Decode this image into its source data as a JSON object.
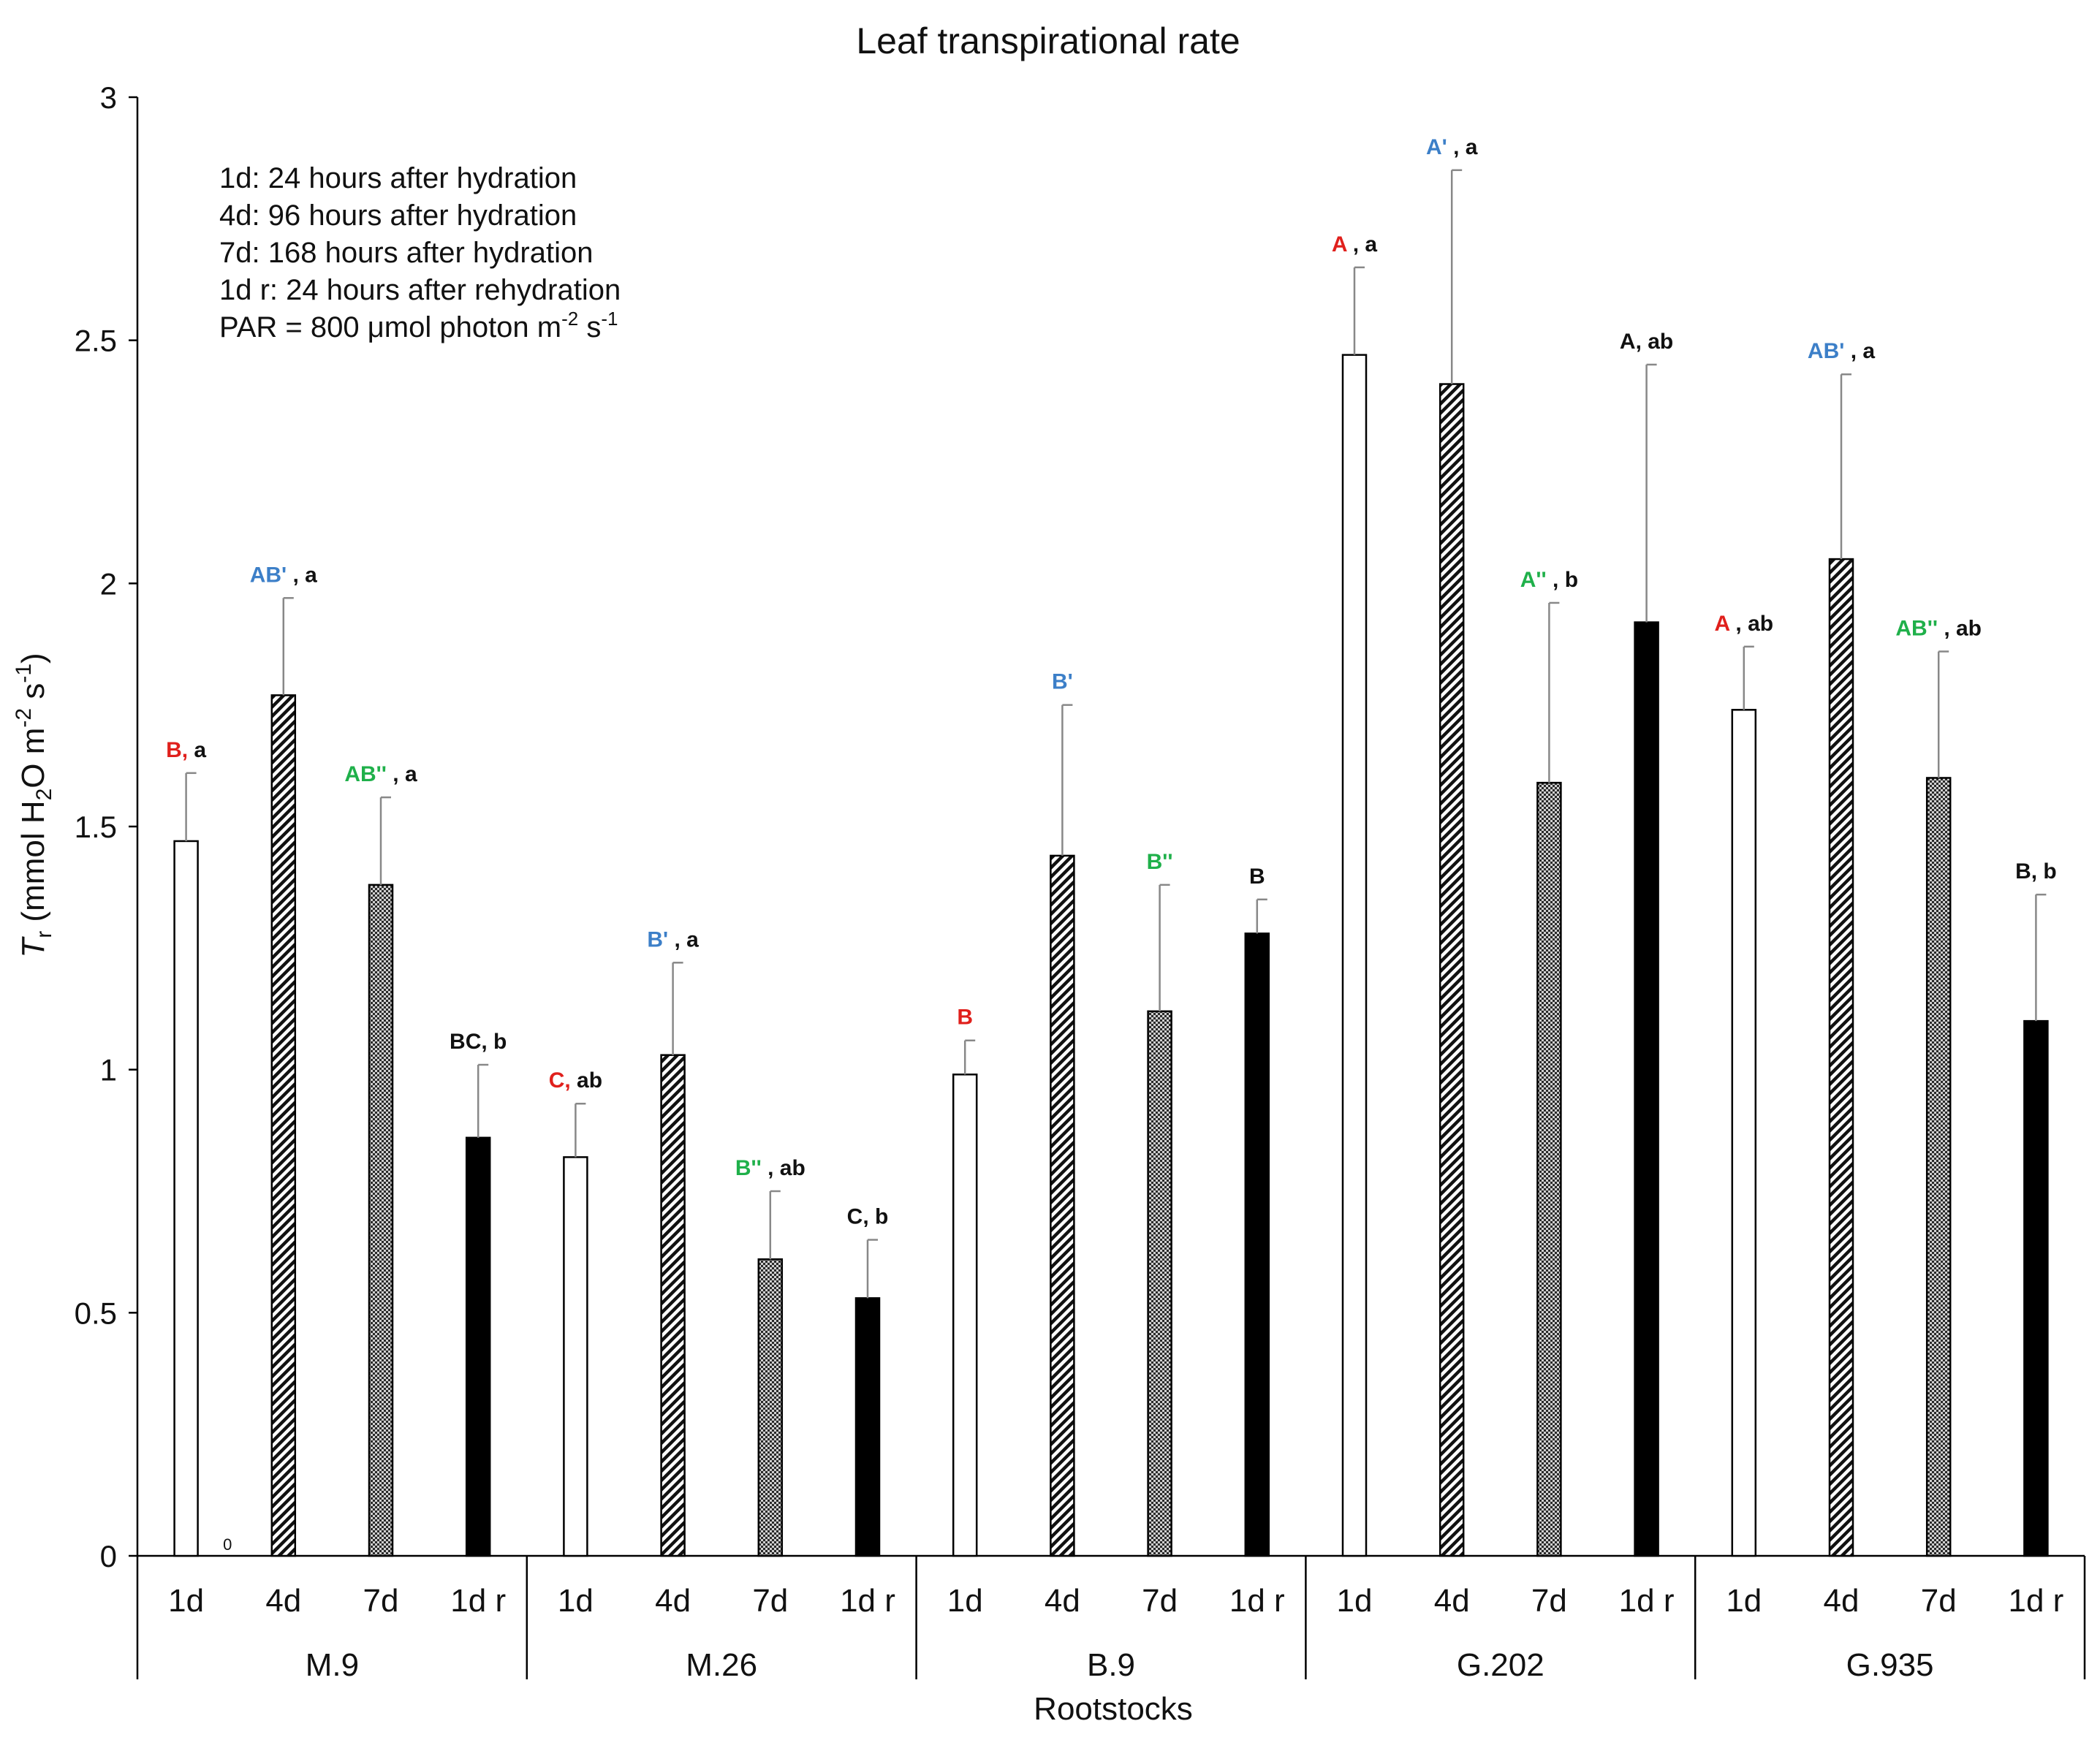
{
  "chart_data": {
    "type": "bar",
    "title": "Leaf transpirational rate",
    "xlabel": "Rootstocks",
    "ylabel_parts": {
      "t": "T",
      "sub_r": "r",
      "main": " (mmol H",
      "sub2": "2",
      "rest": "O m",
      "sup1": "-2",
      "s": " s",
      "sup2": "-1",
      "end": ")"
    },
    "ylim": [
      0,
      3
    ],
    "yticks": [
      "0",
      "0.5",
      "1",
      "1.5",
      "2",
      "2.5",
      "3"
    ],
    "ytick_values": [
      0,
      0.5,
      1,
      1.5,
      2,
      2.5,
      3
    ],
    "colors": {
      "red": "#e0201c",
      "blue": "#3c7fc8",
      "green": "#1fb04a",
      "black": "#111111",
      "err": "#888888"
    },
    "legend_lines": [
      "1d: 24 hours after hydration",
      "4d: 96 hours after hydration",
      "7d: 168 hours after hydration",
      "1d r: 24 hours after rehydration"
    ],
    "legend_par": {
      "text": "PAR = 800 μmol photon m",
      "sup1": "-2",
      "mid": " s",
      "sup2": "-1"
    },
    "treatments": [
      "1d",
      "4d",
      "7d",
      "1d r"
    ],
    "treatment_styles": [
      "open",
      "hatch",
      "dots",
      "solid"
    ],
    "groups": [
      {
        "name": "M.9",
        "bars": [
          {
            "label": "1d",
            "value": 1.47,
            "err": 0.14,
            "sig": [
              {
                "t": "B,",
                "c": "red"
              },
              {
                "t": " a",
                "c": "black"
              }
            ]
          },
          {
            "label": "4d",
            "value": 1.77,
            "err": 0.2,
            "sig": [
              {
                "t": "AB'",
                "c": "blue"
              },
              {
                "t": " , a",
                "c": "black"
              }
            ]
          },
          {
            "label": "7d",
            "value": 1.38,
            "err": 0.18,
            "sig": [
              {
                "t": "AB''",
                "c": "green"
              },
              {
                "t": " , a",
                "c": "black"
              }
            ]
          },
          {
            "label": "1d r",
            "value": 0.86,
            "err": 0.15,
            "sig": [
              {
                "t": "BC, b",
                "c": "black"
              }
            ]
          }
        ]
      },
      {
        "name": "M.26",
        "bars": [
          {
            "label": "1d",
            "value": 0.82,
            "err": 0.11,
            "sig": [
              {
                "t": "C,",
                "c": "red"
              },
              {
                "t": " ab",
                "c": "black"
              }
            ]
          },
          {
            "label": "4d",
            "value": 1.03,
            "err": 0.19,
            "sig": [
              {
                "t": "B'",
                "c": "blue"
              },
              {
                "t": " , a",
                "c": "black"
              }
            ]
          },
          {
            "label": "7d",
            "value": 0.61,
            "err": 0.14,
            "sig": [
              {
                "t": "B''",
                "c": "green"
              },
              {
                "t": " , ab",
                "c": "black"
              }
            ]
          },
          {
            "label": "1d r",
            "value": 0.53,
            "err": 0.12,
            "sig": [
              {
                "t": "C, b",
                "c": "black"
              }
            ]
          }
        ]
      },
      {
        "name": "B.9",
        "bars": [
          {
            "label": "1d",
            "value": 0.99,
            "err": 0.07,
            "sig": [
              {
                "t": "B",
                "c": "red"
              }
            ]
          },
          {
            "label": "4d",
            "value": 1.44,
            "err": 0.31,
            "sig": [
              {
                "t": "B'",
                "c": "blue"
              }
            ]
          },
          {
            "label": "7d",
            "value": 1.12,
            "err": 0.26,
            "sig": [
              {
                "t": "B''",
                "c": "green"
              }
            ]
          },
          {
            "label": "1d r",
            "value": 1.28,
            "err": 0.07,
            "sig": [
              {
                "t": "B",
                "c": "black"
              }
            ]
          }
        ]
      },
      {
        "name": "G.202",
        "bars": [
          {
            "label": "1d",
            "value": 2.47,
            "err": 0.18,
            "sig": [
              {
                "t": "A",
                "c": "red"
              },
              {
                "t": " , a",
                "c": "black"
              }
            ]
          },
          {
            "label": "4d",
            "value": 2.41,
            "err": 0.44,
            "sig": [
              {
                "t": "A'",
                "c": "blue"
              },
              {
                "t": " , a",
                "c": "black"
              }
            ]
          },
          {
            "label": "7d",
            "value": 1.59,
            "err": 0.37,
            "sig": [
              {
                "t": "A''",
                "c": "green"
              },
              {
                "t": " , b",
                "c": "black"
              }
            ]
          },
          {
            "label": "1d r",
            "value": 1.92,
            "err": 0.53,
            "sig": [
              {
                "t": "A, ab",
                "c": "black"
              }
            ]
          }
        ]
      },
      {
        "name": "G.935",
        "bars": [
          {
            "label": "1d",
            "value": 1.74,
            "err": 0.13,
            "sig": [
              {
                "t": "A",
                "c": "red"
              },
              {
                "t": " , ab",
                "c": "black"
              }
            ]
          },
          {
            "label": "4d",
            "value": 2.05,
            "err": 0.38,
            "sig": [
              {
                "t": "AB'",
                "c": "blue"
              },
              {
                "t": " , a",
                "c": "black"
              }
            ]
          },
          {
            "label": "7d",
            "value": 1.6,
            "err": 0.26,
            "sig": [
              {
                "t": "AB''",
                "c": "green"
              },
              {
                "t": " , ab",
                "c": "black"
              }
            ]
          },
          {
            "label": "1d r",
            "value": 1.1,
            "err": 0.26,
            "sig": [
              {
                "t": "B, b",
                "c": "black"
              }
            ]
          }
        ]
      }
    ],
    "zero_marker": "0"
  }
}
